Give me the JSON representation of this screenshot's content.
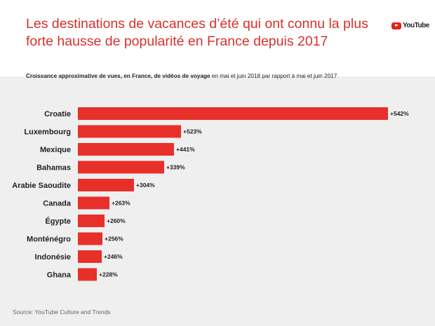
{
  "header": {
    "title": "Les destinations de vacances d’été qui ont connu la plus forte hausse de popularité en France depuis 2017",
    "logo_text": "YouTube"
  },
  "chart_data": {
    "type": "bar",
    "orientation": "horizontal",
    "title": "Les destinations de vacances d’été qui ont connu la plus forte hausse de popularité en France depuis 2017",
    "subtitle_bold": "Croissance approximative de vues, en France, de vidéos de voyage",
    "subtitle_rest": " en mai et juin 2018 par rapport à mai et juin 2017",
    "categories": [
      "Croatie",
      "Luxembourg",
      "Mexique",
      "Bahamas",
      "Arabie Saoudite",
      "Canada",
      "Égypte",
      "Monténégro",
      "Indonésie",
      "Ghana"
    ],
    "values": [
      542,
      523,
      441,
      339,
      304,
      263,
      260,
      256,
      246,
      228
    ],
    "labels": [
      "+542%",
      "+523%",
      "+441%",
      "+339%",
      "+304%",
      "+263%",
      "+260%",
      "+256%",
      "+246%",
      "+228%"
    ],
    "unit": "%",
    "bar_color": "#e8302a",
    "grid": false
  },
  "footer": {
    "source": "Source: YouTube Culture and Trends"
  },
  "colors": {
    "title": "#d8312c",
    "background": "#efefef"
  }
}
